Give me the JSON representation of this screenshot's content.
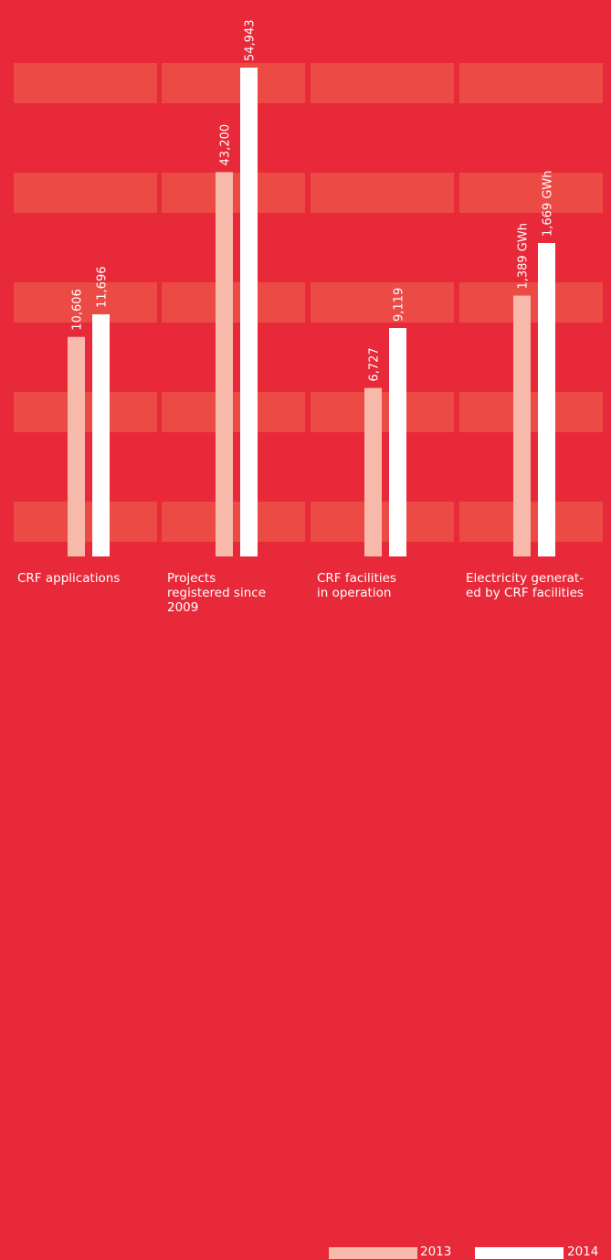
{
  "chart_data": {
    "type": "bar",
    "categories": [
      "CRF applications",
      "Projects registered since 2009",
      "CRF facilities in operation",
      "Electricity generat-ed by CRF facilities"
    ],
    "category_lines": [
      [
        "CRF applications"
      ],
      [
        "Projects",
        "registered since",
        "2009"
      ],
      [
        "CRF facilities",
        "in operation"
      ],
      [
        "Electricity generat-",
        "ed by CRF facilities"
      ]
    ],
    "series": [
      {
        "name": "2013",
        "color": "#f7b9aa",
        "values": [
          10606,
          43200,
          6727,
          1389
        ],
        "labels": [
          "10,606",
          "43,200",
          "6,727",
          "1,389 GWh"
        ]
      },
      {
        "name": "2014",
        "color": "#ffffff",
        "values": [
          11696,
          54943,
          9119,
          1669
        ],
        "labels": [
          "11,696",
          "54,943",
          "9,119",
          "1,669 GWh"
        ]
      }
    ],
    "background_color": "#e8293a",
    "band_color": "#ec4a45",
    "legend_placement": "bottom-right",
    "grid": true
  },
  "legend": {
    "items": [
      {
        "name": "2013",
        "color": "#f7b9aa"
      },
      {
        "name": "2014",
        "color": "#ffffff"
      }
    ]
  }
}
